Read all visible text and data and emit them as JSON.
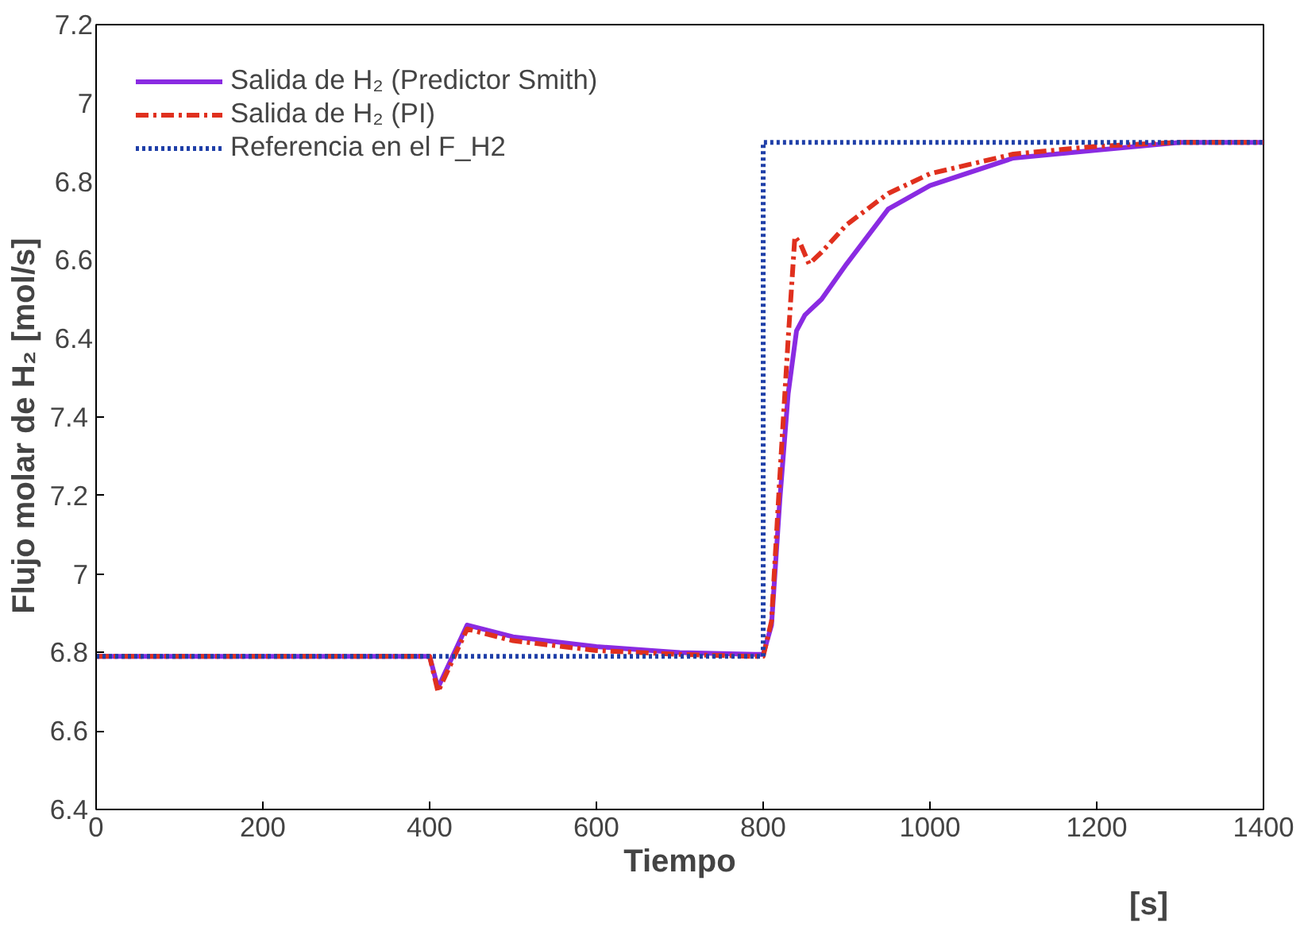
{
  "chart_data": {
    "type": "line",
    "xlabel": "Tiempo",
    "ylabel": "Flujo molar de  H₂  [mol/s]",
    "annotations": [
      "[s]"
    ],
    "xlim": [
      0,
      1400
    ],
    "xticks": [
      0,
      200,
      400,
      600,
      800,
      1000,
      1200,
      1400
    ],
    "ylim": [
      6.4,
      8.4
    ],
    "yticks": [
      6.4,
      6.6,
      6.8,
      7,
      7.2,
      7.4
    ],
    "y2lim": [
      5.2,
      7.2
    ],
    "y2ticks": [
      6.4,
      6.6,
      6.8,
      7,
      7.2
    ],
    "grid": false,
    "legend": "top left",
    "marker": "none",
    "series": [
      {
        "name": "Salida de H₂ (Predictor Smith)",
        "color": "#8a2be2",
        "line_style": "solid",
        "x": [
          0,
          400,
          410,
          445,
          500,
          600,
          700,
          790,
          800,
          810,
          820,
          830,
          840,
          850,
          870,
          900,
          950,
          1000,
          1100,
          1200,
          1300,
          1400
        ],
        "values": [
          6.79,
          6.79,
          6.71,
          6.87,
          6.84,
          6.815,
          6.8,
          6.795,
          6.795,
          6.87,
          7.19,
          7.46,
          7.62,
          7.66,
          7.7,
          7.79,
          7.93,
          7.99,
          8.06,
          8.08,
          8.1,
          8.1
        ]
      },
      {
        "name": "Salida de H₂ (PI)",
        "color": "#e0301e",
        "line_style": "dashdot",
        "x": [
          0,
          400,
          410,
          445,
          500,
          600,
          700,
          790,
          800,
          810,
          820,
          830,
          838,
          845,
          855,
          870,
          900,
          950,
          1000,
          1100,
          1200,
          1300,
          1400
        ],
        "values": [
          6.79,
          6.79,
          6.7,
          6.86,
          6.83,
          6.805,
          6.795,
          6.79,
          6.79,
          6.88,
          7.25,
          7.6,
          7.86,
          7.84,
          7.79,
          7.82,
          7.89,
          7.97,
          8.02,
          8.07,
          8.09,
          8.1,
          8.1
        ]
      },
      {
        "name": "Referencia en el F_H2",
        "color": "#1f3fa8",
        "line_style": "dotted",
        "x": [
          0,
          800,
          800,
          1400
        ],
        "values": [
          6.79,
          6.79,
          8.1,
          8.1
        ]
      }
    ]
  }
}
